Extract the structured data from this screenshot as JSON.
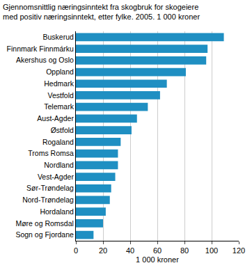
{
  "chart_data": {
    "type": "bar",
    "orientation": "horizontal",
    "title": "Gjennomsnittlig næringsinntekt fra skogbruk for skogeiere\nmed positiv næringsinntekt, etter fylke. 2005. 1 000 kroner",
    "x_label": "1 000 kroner",
    "categories": [
      "Buskerud",
      "Finnmark Finnmárku",
      "Akershus og Oslo",
      "Oppland",
      "Hedmark",
      "Vestfold",
      "Telemark",
      "Aust-Agder",
      "Østfold",
      "Rogaland",
      "Troms Romsa",
      "Nordland",
      "Vest-Agder",
      "Sør-Trøndelag",
      "Nord-Trøndelag",
      "Hordaland",
      "Møre og Romsdal",
      "Sogn og Fjordane"
    ],
    "values": [
      109,
      97,
      96,
      81,
      67,
      62,
      53,
      45,
      41,
      33,
      31,
      31,
      29,
      26,
      25,
      22,
      20,
      13
    ],
    "color": "#1f8fc2",
    "xlim": [
      0,
      120
    ],
    "xticks": [
      0,
      20,
      40,
      60,
      80,
      100,
      120
    ],
    "grid": true
  }
}
